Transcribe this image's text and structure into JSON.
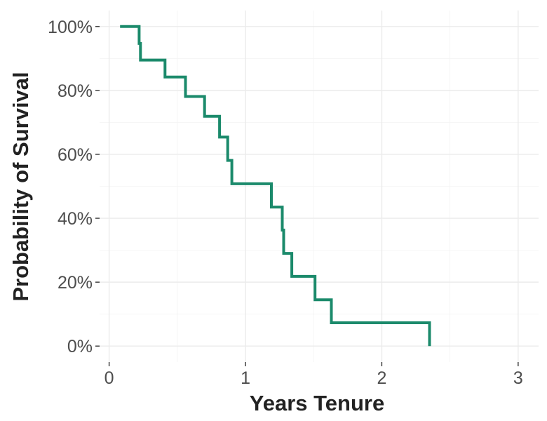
{
  "chart_data": {
    "type": "line",
    "step": true,
    "xlabel": "Years Tenure",
    "ylabel": "Probability of Survival",
    "xlim": [
      -0.07,
      3.15
    ],
    "ylim": [
      -0.05,
      1.05
    ],
    "x_ticks": [
      0,
      1,
      2,
      3
    ],
    "x_tick_labels": [
      "0",
      "1",
      "2",
      "3"
    ],
    "y_ticks": [
      0,
      0.2,
      0.4,
      0.6,
      0.8,
      1.0
    ],
    "y_tick_labels": [
      "0%",
      "20%",
      "40%",
      "60%",
      "80%",
      "100%"
    ],
    "grid": true,
    "legend": "none",
    "line_color": "#1b8a6b",
    "series": [
      {
        "x": [
          0.08,
          0.22,
          0.23,
          0.41,
          0.56,
          0.7,
          0.81,
          0.87,
          0.9,
          1.19,
          1.27,
          1.28,
          1.34,
          1.51,
          1.63,
          2.35
        ],
        "y": [
          1.0,
          0.947,
          0.895,
          0.842,
          0.781,
          0.719,
          0.654,
          0.581,
          0.508,
          0.435,
          0.363,
          0.29,
          0.218,
          0.145,
          0.073,
          0.0
        ]
      }
    ]
  }
}
